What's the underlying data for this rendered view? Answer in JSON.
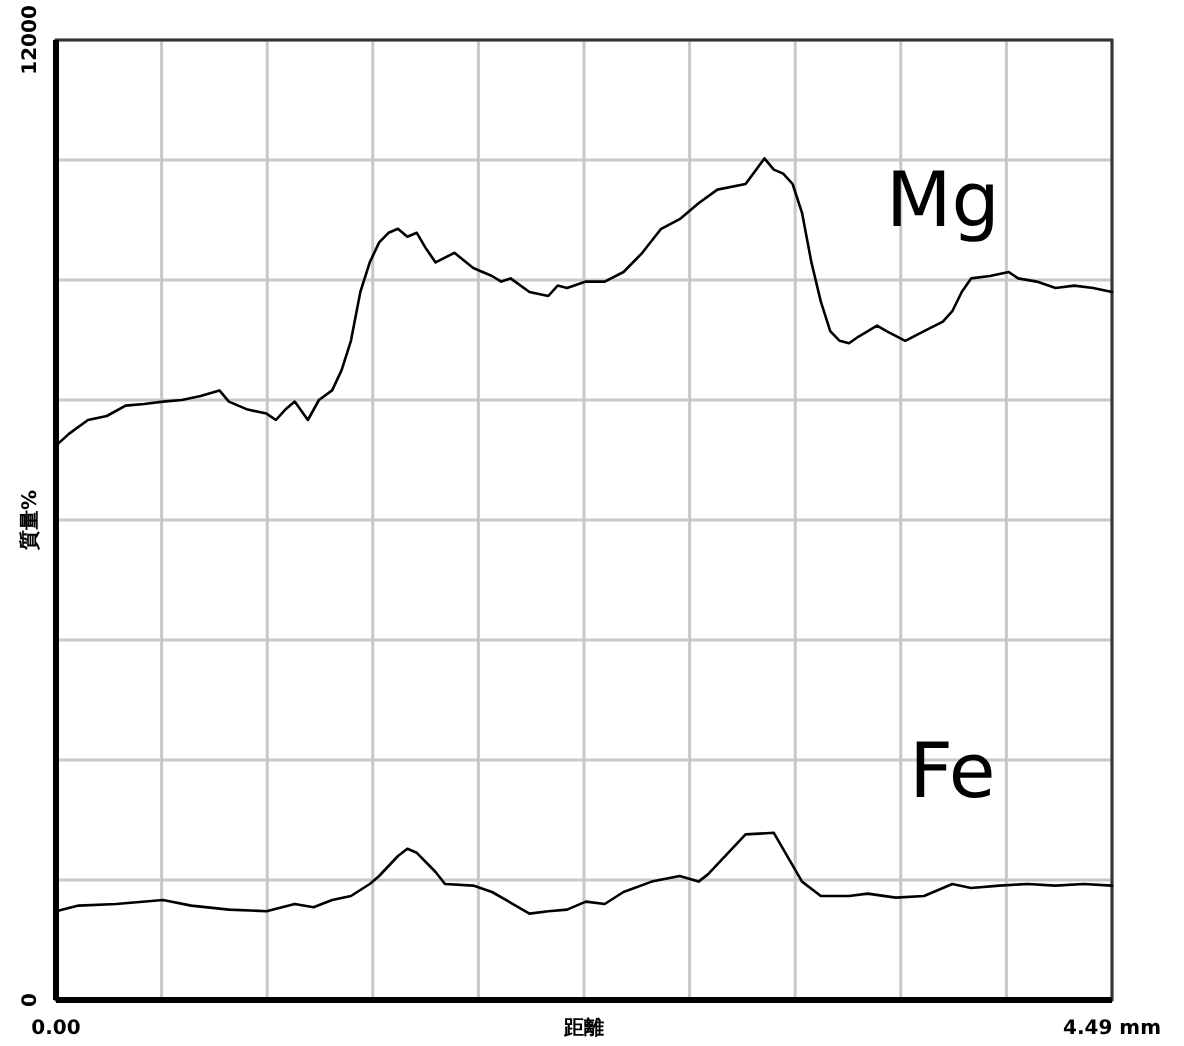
{
  "chart_data": {
    "type": "line",
    "xlabel": "距離",
    "ylabel": "質量%",
    "xlim": [
      0,
      4.49
    ],
    "ylim": [
      0,
      12000
    ],
    "xticks": [
      {
        "value": 0,
        "label": "0.00"
      },
      {
        "value": 0.449,
        "label": null
      },
      {
        "value": 0.898,
        "label": null
      },
      {
        "value": 1.347,
        "label": null
      },
      {
        "value": 1.796,
        "label": null
      },
      {
        "value": 2.245,
        "label": null
      },
      {
        "value": 2.694,
        "label": null
      },
      {
        "value": 3.143,
        "label": null
      },
      {
        "value": 3.592,
        "label": null
      },
      {
        "value": 4.041,
        "label": null
      },
      {
        "value": 4.49,
        "label": "4.49 mm"
      }
    ],
    "yticks": [
      0,
      {
        "value": 1500,
        "label": null
      },
      {
        "value": 3000,
        "label": null
      },
      {
        "value": 4500,
        "label": null
      },
      {
        "value": 6000,
        "label": null
      },
      {
        "value": 7500,
        "label": null
      },
      {
        "value": 9000,
        "label": null
      },
      {
        "value": 10500,
        "label": null
      },
      12000
    ],
    "grid": true,
    "legend": false,
    "line_style": "solid",
    "marker": "none",
    "series": [
      {
        "name": "Mg",
        "color": "#000000",
        "x": [
          0,
          0.056,
          0.136,
          0.216,
          0.296,
          0.375,
          0.455,
          0.535,
          0.615,
          0.695,
          0.735,
          0.815,
          0.895,
          0.935,
          0.975,
          1.015,
          1.071,
          1.118,
          1.174,
          1.214,
          1.254,
          1.294,
          1.334,
          1.374,
          1.414,
          1.454,
          1.494,
          1.534,
          1.574,
          1.614,
          1.694,
          1.774,
          1.854,
          1.893,
          1.933,
          2.013,
          2.093,
          2.133,
          2.173,
          2.253,
          2.333,
          2.413,
          2.493,
          2.573,
          2.652,
          2.732,
          2.812,
          2.932,
          3.012,
          3.052,
          3.092,
          3.132,
          3.172,
          3.212,
          3.252,
          3.292,
          3.332,
          3.372,
          3.411,
          3.491,
          3.531,
          3.611,
          3.691,
          3.771,
          3.811,
          3.851,
          3.891,
          3.971,
          4.051,
          4.091,
          4.17,
          4.25,
          4.33,
          4.41,
          4.49
        ],
        "values": [
          6930,
          7080,
          7250,
          7300,
          7430,
          7450,
          7480,
          7500,
          7550,
          7620,
          7480,
          7380,
          7330,
          7250,
          7380,
          7480,
          7250,
          7500,
          7620,
          7870,
          8240,
          8850,
          9220,
          9470,
          9590,
          9640,
          9540,
          9590,
          9390,
          9220,
          9340,
          9150,
          9050,
          8980,
          9020,
          8850,
          8800,
          8930,
          8900,
          8980,
          8980,
          9100,
          9340,
          9640,
          9760,
          9960,
          10130,
          10200,
          10520,
          10380,
          10330,
          10200,
          9840,
          9220,
          8730,
          8360,
          8240,
          8210,
          8290,
          8430,
          8360,
          8240,
          8360,
          8480,
          8610,
          8850,
          9020,
          9050,
          9100,
          9020,
          8980,
          8900,
          8930,
          8900,
          8850
        ]
      },
      {
        "name": "Fe",
        "color": "#000000",
        "x": [
          0,
          0.096,
          0.256,
          0.455,
          0.575,
          0.735,
          0.895,
          1.015,
          1.095,
          1.174,
          1.254,
          1.334,
          1.374,
          1.454,
          1.494,
          1.534,
          1.614,
          1.654,
          1.774,
          1.854,
          2.013,
          2.093,
          2.173,
          2.253,
          2.333,
          2.413,
          2.533,
          2.652,
          2.732,
          2.772,
          2.852,
          2.932,
          3.052,
          3.172,
          3.252,
          3.372,
          3.451,
          3.571,
          3.691,
          3.811,
          3.891,
          4.011,
          4.131,
          4.25,
          4.37,
          4.49
        ],
        "values": [
          1110,
          1180,
          1200,
          1250,
          1180,
          1130,
          1110,
          1200,
          1160,
          1250,
          1300,
          1450,
          1550,
          1800,
          1890,
          1840,
          1600,
          1450,
          1430,
          1350,
          1080,
          1110,
          1130,
          1230,
          1200,
          1350,
          1480,
          1550,
          1480,
          1570,
          1820,
          2070,
          2090,
          1480,
          1300,
          1300,
          1330,
          1280,
          1300,
          1450,
          1400,
          1430,
          1450,
          1430,
          1450,
          1430
        ]
      }
    ]
  }
}
